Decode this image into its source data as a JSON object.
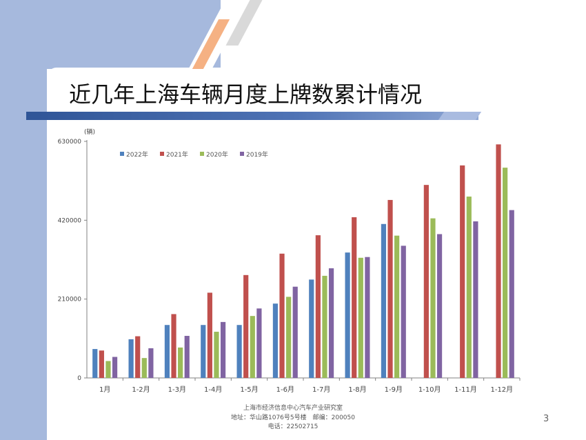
{
  "slide": {
    "title": "近几年上海车辆月度上牌数累计情况",
    "footer_line1": "上海市经济信息中心汽车产业研究室",
    "footer_line2": "地址：华山路1076号5号楼　邮编：200050",
    "footer_line3": "电话：22502715",
    "page_number": "3"
  },
  "colors": {
    "background_band": "#a6b9dd",
    "title_bar": "#2f5597",
    "accent_orange": "#f5b183",
    "accent_gray": "#d9d9d9"
  },
  "chart_data": {
    "type": "bar",
    "title": "",
    "xlabel": "",
    "ylabel": "(辆)",
    "ylim": [
      0,
      630000
    ],
    "yticks": [
      "0",
      "210000",
      "420000",
      "630000"
    ],
    "ytick_values": [
      0,
      210000,
      420000,
      630000
    ],
    "grid": false,
    "legend_position": "top-left",
    "categories": [
      "1月",
      "1-2月",
      "1-3月",
      "1-4月",
      "1-5月",
      "1-6月",
      "1-7月",
      "1-8月",
      "1-9月",
      "1-10月",
      "1-11月",
      "1-12月"
    ],
    "series": [
      {
        "name": "2022年",
        "color": "#4f81bd",
        "values": [
          77000,
          103000,
          141000,
          141000,
          141000,
          198000,
          262000,
          334000,
          410000,
          null,
          null,
          null
        ]
      },
      {
        "name": "2021年",
        "color": "#c0504d",
        "values": [
          73000,
          111000,
          170000,
          227000,
          274000,
          331000,
          380000,
          428000,
          474000,
          514000,
          566000,
          622000
        ]
      },
      {
        "name": "2020年",
        "color": "#9bbb59",
        "values": [
          45000,
          53000,
          81000,
          123000,
          165000,
          216000,
          272000,
          320000,
          379000,
          425000,
          483000,
          560000
        ]
      },
      {
        "name": "2019年",
        "color": "#8064a2",
        "values": [
          56000,
          79000,
          112000,
          149000,
          185000,
          243000,
          292000,
          322000,
          352000,
          383000,
          417000,
          447000
        ]
      }
    ]
  }
}
